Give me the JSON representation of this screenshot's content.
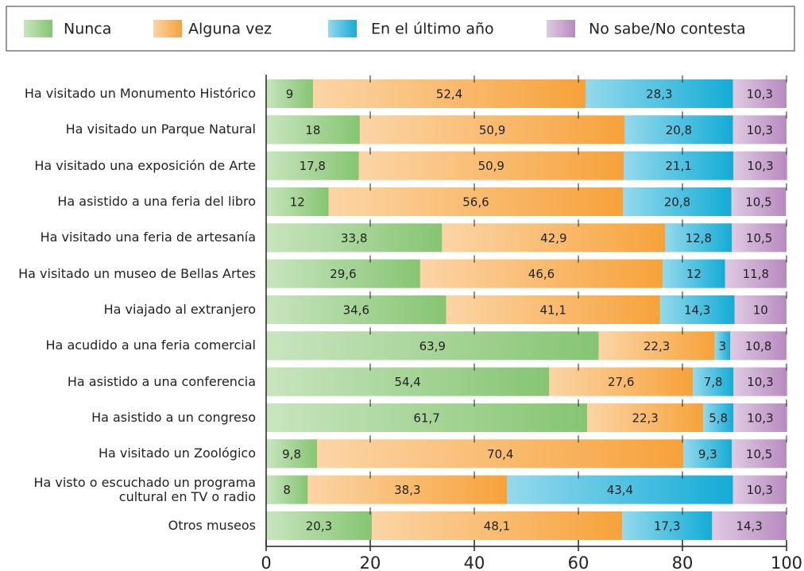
{
  "chart_data": {
    "type": "stacked_bar_horizontal",
    "categories": [
      "Ha visitado un Monumento Histórico",
      "Ha visitado un Parque Natural",
      "Ha visitado una exposición de Arte",
      "Ha asistido a una feria del libro",
      "Ha visitado una feria de artesanía",
      "Ha visitado un museo de Bellas Artes",
      "Ha viajado al extranjero",
      "Ha acudido a una feria comercial",
      "Ha asistido a una conferencia",
      "Ha asistido a un congreso",
      "Ha visitado un Zoológico",
      "Ha visto o escuchado un programa\ncultural en TV o radio",
      "Otros museos"
    ],
    "series": [
      {
        "name": "Nunca",
        "color": "#86c572",
        "values": [
          9,
          18,
          17.8,
          12,
          33.8,
          29.6,
          34.6,
          63.9,
          54.4,
          61.7,
          9.8,
          8,
          20.3
        ],
        "value_labels": [
          "9",
          "18",
          "17,8",
          "12",
          "33,8",
          "29,6",
          "34,6",
          "63,9",
          "54,4",
          "61,7",
          "9,8",
          "8",
          "20,3"
        ]
      },
      {
        "name": "Alguna vez",
        "color": "#f7a23a",
        "values": [
          52.4,
          50.9,
          50.9,
          56.6,
          42.9,
          46.6,
          41.1,
          22.3,
          27.6,
          22.3,
          70.4,
          38.3,
          48.1
        ],
        "value_labels": [
          "52,4",
          "50,9",
          "50,9",
          "56,6",
          "42,9",
          "46,6",
          "41,1",
          "22,3",
          "27,6",
          "22,3",
          "70,4",
          "38,3",
          "48,1"
        ]
      },
      {
        "name": "En el último año",
        "color": "#13acd6",
        "values": [
          28.3,
          20.8,
          21.1,
          20.8,
          12.8,
          12,
          14.3,
          3,
          7.8,
          5.8,
          9.3,
          43.4,
          17.3
        ],
        "value_labels": [
          "28,3",
          "20,8",
          "21,1",
          "20,8",
          "12,8",
          "12",
          "14,3",
          "3",
          "7,8",
          "5,8",
          "9,3",
          "43,4",
          "17,3"
        ]
      },
      {
        "name": "No sabe/No contesta",
        "color": "#b88ac0",
        "values": [
          10.3,
          10.3,
          10.3,
          10.5,
          10.5,
          11.8,
          10,
          10.8,
          10.3,
          10.3,
          10.5,
          10.3,
          14.3
        ],
        "value_labels": [
          "10,3",
          "10,3",
          "10,3",
          "10,5",
          "10,5",
          "11,8",
          "10",
          "10,8",
          "10,3",
          "10,3",
          "10,5",
          "10,3",
          "14,3"
        ]
      }
    ],
    "xlim": [
      0,
      100
    ],
    "xticks": [
      0,
      20,
      40,
      60,
      80,
      100
    ],
    "legend": "top"
  }
}
